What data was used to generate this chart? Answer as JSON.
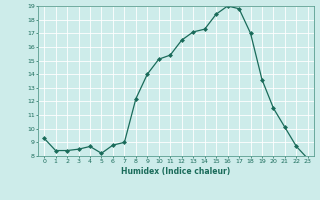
{
  "x": [
    0,
    1,
    2,
    3,
    4,
    5,
    6,
    7,
    8,
    9,
    10,
    11,
    12,
    13,
    14,
    15,
    16,
    17,
    18,
    19,
    20,
    21,
    22,
    23
  ],
  "y": [
    9.3,
    8.4,
    8.4,
    8.5,
    8.7,
    8.2,
    8.8,
    9.0,
    12.2,
    14.0,
    15.1,
    15.4,
    16.5,
    17.1,
    17.3,
    18.4,
    19.0,
    18.8,
    17.0,
    13.6,
    11.5,
    10.1,
    8.7,
    7.8
  ],
  "xlabel": "Humidex (Indice chaleur)",
  "ylim": [
    8,
    19
  ],
  "xlim": [
    -0.5,
    23.5
  ],
  "yticks": [
    8,
    9,
    10,
    11,
    12,
    13,
    14,
    15,
    16,
    17,
    18,
    19
  ],
  "xticks": [
    0,
    1,
    2,
    3,
    4,
    5,
    6,
    7,
    8,
    9,
    10,
    11,
    12,
    13,
    14,
    15,
    16,
    17,
    18,
    19,
    20,
    21,
    22,
    23
  ],
  "line_color": "#1a6b5a",
  "marker": "D",
  "marker_size": 2.0,
  "bg_color": "#cdecea",
  "grid_color": "#ffffff",
  "tick_color": "#1a6b5a",
  "label_color": "#1a6b5a",
  "spine_color": "#5a9e90"
}
